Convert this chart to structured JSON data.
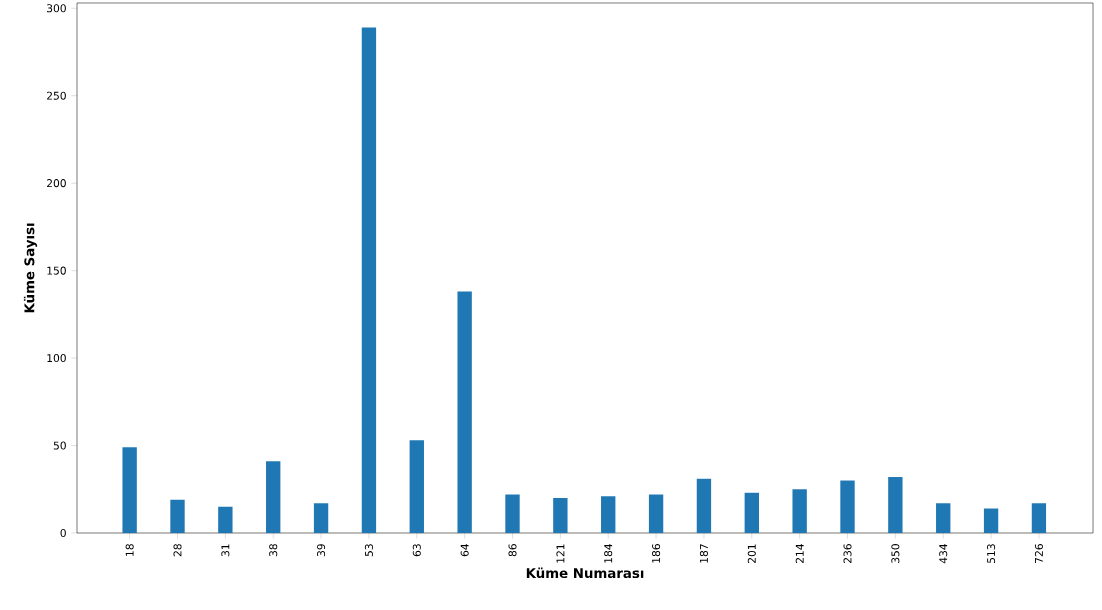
{
  "chart_data": {
    "type": "bar",
    "xlabel": "Küme Numarası",
    "ylabel": "Küme Sayısı",
    "categories": [
      "18",
      "28",
      "31",
      "38",
      "39",
      "53",
      "63",
      "64",
      "86",
      "121",
      "184",
      "186",
      "187",
      "201",
      "214",
      "236",
      "350",
      "434",
      "513",
      "726"
    ],
    "values": [
      49,
      19,
      15,
      41,
      17,
      289,
      53,
      138,
      22,
      20,
      21,
      22,
      31,
      23,
      25,
      30,
      32,
      17,
      14,
      17
    ],
    "color": "#1f77b4",
    "ylim": [
      0,
      303
    ],
    "yticks": [
      0,
      50,
      100,
      150,
      200,
      250,
      300
    ],
    "grid": false
  }
}
